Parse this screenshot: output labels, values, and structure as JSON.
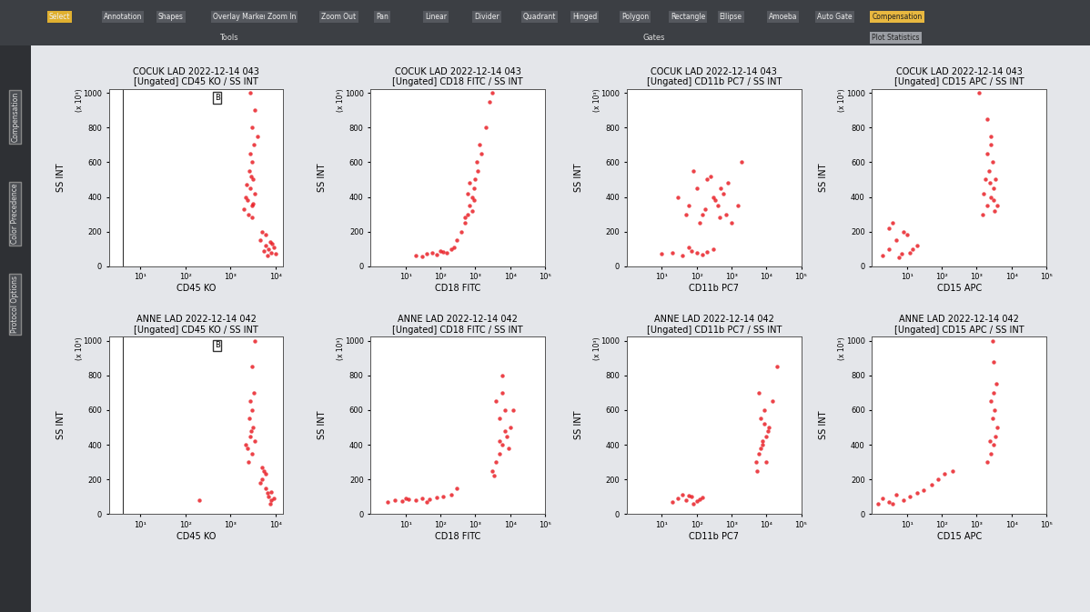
{
  "toolbar": {
    "tools_title": "Tools",
    "tools": [
      "Select",
      "Annotation",
      "Shapes",
      "Overlay Marker",
      "Zoom In",
      "Zoom Out",
      "Pan"
    ],
    "gates_title": "Gates",
    "gates": [
      "Linear",
      "Divider",
      "Quadrant",
      "Hinged",
      "Polygon",
      "Rectangle",
      "Ellipse",
      "Amoeba",
      "Auto Gate"
    ],
    "buttons": [
      "Compensation",
      "Plot Statistics"
    ]
  },
  "side_tabs": [
    "Compensation",
    "Color Precedence",
    "Protocol Options"
  ],
  "chart_data": [
    {
      "type": "scatter",
      "title": "COCUK LAD 2022-12-14 043",
      "subtitle": "[Ungated] CD45 KO / SS INT",
      "x_label": "CD45 KO",
      "y_label": "SS INT",
      "annotations": [
        "(x 10³)"
      ],
      "log": "x",
      "color": "#e8141b",
      "marker": "o",
      "xlim": [
        2,
        15000
      ],
      "xticks": [
        {
          "value": 10,
          "label": "10¹"
        },
        {
          "value": 100,
          "label": "10²"
        },
        {
          "value": 1000,
          "label": "10³"
        },
        {
          "value": 10000,
          "label": "10⁴"
        }
      ],
      "ylim": [
        0,
        1024
      ],
      "yticks": [
        0,
        200,
        400,
        600,
        800,
        1000
      ],
      "gate": {
        "label": "B",
        "x": 4
      },
      "x": [
        2500,
        3000,
        2200,
        2800,
        3200,
        2600,
        3000,
        2400,
        3500,
        2000,
        3000,
        2700,
        3300,
        3000,
        3500,
        2800,
        4000,
        2300,
        2900,
        3100,
        5000,
        4500,
        6000,
        7000,
        8000,
        6500,
        9000,
        5500,
        7500,
        10000,
        8500,
        6000
      ],
      "y": [
        300,
        350,
        400,
        450,
        500,
        550,
        600,
        380,
        420,
        330,
        280,
        650,
        700,
        800,
        900,
        1000,
        750,
        470,
        520,
        360,
        200,
        150,
        120,
        100,
        80,
        60,
        110,
        90,
        140,
        70,
        130,
        180
      ]
    },
    {
      "type": "scatter",
      "title": "COCUK LAD 2022-12-14 043",
      "subtitle": "[Ungated] CD18 FITC / SS INT",
      "x_label": "CD18 FITC",
      "y_label": "SS INT",
      "annotations": [
        "(x 10³)"
      ],
      "log": "x",
      "color": "#e8141b",
      "marker": "o",
      "xlim": [
        1,
        100000
      ],
      "xticks": [
        {
          "value": 10,
          "label": "10¹"
        },
        {
          "value": 100,
          "label": "10²"
        },
        {
          "value": 1000,
          "label": "10³"
        },
        {
          "value": 10000,
          "label": "10⁴"
        },
        {
          "value": 100000,
          "label": "10⁵"
        }
      ],
      "ylim": [
        0,
        1024
      ],
      "yticks": [
        0,
        200,
        400,
        600,
        800,
        1000
      ],
      "x": [
        20,
        40,
        60,
        80,
        100,
        150,
        200,
        30,
        120,
        250,
        300,
        400,
        500,
        600,
        700,
        800,
        900,
        1000,
        1200,
        1500,
        2000,
        2500,
        600,
        700,
        900,
        1100,
        800,
        500,
        3000,
        1300
      ],
      "y": [
        60,
        70,
        80,
        65,
        90,
        75,
        100,
        55,
        85,
        110,
        150,
        200,
        250,
        300,
        350,
        400,
        450,
        500,
        550,
        650,
        800,
        950,
        420,
        480,
        380,
        600,
        320,
        280,
        1000,
        700
      ]
    },
    {
      "type": "scatter",
      "title": "COCUK LAD 2022-12-14 043",
      "subtitle": "[Ungated] CD11b PC7 / SS INT",
      "x_label": "CD11b PC7",
      "y_label": "SS INT",
      "annotations": [
        "(x 10³)"
      ],
      "log": "x",
      "color": "#e8141b",
      "marker": "o",
      "xlim": [
        1,
        100000
      ],
      "xticks": [
        {
          "value": 10,
          "label": "10¹"
        },
        {
          "value": 100,
          "label": "10²"
        },
        {
          "value": 1000,
          "label": "10³"
        },
        {
          "value": 10000,
          "label": "10⁴"
        },
        {
          "value": 100000,
          "label": "10⁵"
        }
      ],
      "ylim": [
        0,
        1024
      ],
      "yticks": [
        0,
        200,
        400,
        600,
        800,
        1000
      ],
      "x": [
        30,
        60,
        100,
        150,
        200,
        300,
        400,
        500,
        700,
        1000,
        80,
        120,
        250,
        350,
        600,
        50,
        180,
        450,
        800,
        1500,
        10,
        20,
        40,
        70,
        100,
        200,
        300,
        150,
        60,
        2000
      ],
      "y": [
        400,
        350,
        450,
        300,
        500,
        400,
        350,
        450,
        300,
        250,
        550,
        250,
        520,
        380,
        420,
        300,
        330,
        280,
        480,
        350,
        70,
        80,
        60,
        90,
        75,
        85,
        100,
        65,
        110,
        600
      ]
    },
    {
      "type": "scatter",
      "title": "COCUK LAD 2022-12-14 043",
      "subtitle": "[Ungated] CD15 APC / SS INT",
      "x_label": "CD15 APC",
      "y_label": "SS INT",
      "annotations": [
        "(x 10³)"
      ],
      "log": "x",
      "color": "#e8141b",
      "marker": "o",
      "xlim": [
        1,
        100000
      ],
      "xticks": [
        {
          "value": 10,
          "label": "10¹"
        },
        {
          "value": 100,
          "label": "10²"
        },
        {
          "value": 1000,
          "label": "10³"
        },
        {
          "value": 10000,
          "label": "10⁴"
        },
        {
          "value": 100000,
          "label": "10⁵"
        }
      ],
      "ylim": [
        0,
        1024
      ],
      "yticks": [
        0,
        200,
        400,
        600,
        800,
        1000
      ],
      "x": [
        2,
        3,
        5,
        8,
        12,
        20,
        4,
        6,
        10,
        15,
        3,
        7,
        1500,
        2000,
        2500,
        3000,
        1800,
        2200,
        2800,
        3500,
        2000,
        2500,
        1600,
        3000,
        4000,
        2400,
        2000,
        1200,
        2600,
        3200
      ],
      "y": [
        60,
        100,
        150,
        200,
        80,
        120,
        250,
        50,
        180,
        100,
        220,
        70,
        300,
        350,
        400,
        450,
        500,
        550,
        600,
        500,
        650,
        700,
        420,
        380,
        350,
        480,
        850,
        1000,
        750,
        320
      ]
    },
    {
      "type": "scatter",
      "title": "ANNE LAD 2022-12-14 042",
      "subtitle": "[Ungated] CD45 KO / SS INT",
      "x_label": "CD45 KO",
      "y_label": "SS INT",
      "annotations": [
        "(x 10³)"
      ],
      "log": "x",
      "color": "#e8141b",
      "marker": "o",
      "xlim": [
        2,
        15000
      ],
      "xticks": [
        {
          "value": 10,
          "label": "10¹"
        },
        {
          "value": 100,
          "label": "10²"
        },
        {
          "value": 1000,
          "label": "10³"
        },
        {
          "value": 10000,
          "label": "10⁴"
        }
      ],
      "ylim": [
        0,
        1024
      ],
      "yticks": [
        0,
        200,
        400,
        600,
        800,
        1000
      ],
      "gate": {
        "label": "B",
        "x": 4
      },
      "x": [
        2500,
        3000,
        2200,
        2800,
        3200,
        2600,
        3000,
        2400,
        3500,
        2700,
        3300,
        2900,
        3000,
        3500,
        5000,
        6000,
        7000,
        8000,
        6500,
        9000,
        5500,
        7500,
        4500,
        5000,
        6000,
        200,
        8000
      ],
      "y": [
        300,
        350,
        400,
        450,
        500,
        550,
        600,
        380,
        420,
        650,
        700,
        480,
        850,
        1000,
        200,
        150,
        100,
        80,
        120,
        90,
        250,
        60,
        180,
        270,
        230,
        80,
        130
      ]
    },
    {
      "type": "scatter",
      "title": "ANNE LAD 2022-12-14 042",
      "subtitle": "[Ungated] CD18 FITC / SS INT",
      "x_label": "CD18 FITC",
      "y_label": "SS INT",
      "annotations": [
        "(x 10³)"
      ],
      "log": "x",
      "color": "#e8141b",
      "marker": "o",
      "xlim": [
        1,
        100000
      ],
      "xticks": [
        {
          "value": 10,
          "label": "10¹"
        },
        {
          "value": 100,
          "label": "10²"
        },
        {
          "value": 1000,
          "label": "10³"
        },
        {
          "value": 10000,
          "label": "10⁴"
        },
        {
          "value": 100000,
          "label": "10⁵"
        }
      ],
      "ylim": [
        0,
        1024
      ],
      "yticks": [
        0,
        200,
        400,
        600,
        800,
        1000
      ],
      "x": [
        3,
        5,
        8,
        12,
        20,
        30,
        50,
        80,
        120,
        200,
        300,
        10,
        40,
        3000,
        4000,
        5000,
        6000,
        8000,
        10000,
        5000,
        7000,
        4000,
        6000,
        9000,
        5000,
        3500,
        7000,
        12000,
        6000
      ],
      "y": [
        70,
        80,
        75,
        85,
        80,
        90,
        85,
        95,
        100,
        110,
        150,
        90,
        70,
        250,
        300,
        350,
        400,
        450,
        500,
        550,
        600,
        650,
        700,
        380,
        420,
        220,
        480,
        600,
        800
      ]
    },
    {
      "type": "scatter",
      "title": "ANNE LAD 2022-12-14 042",
      "subtitle": "[Ungated] CD11b PC7 / SS INT",
      "x_label": "CD11b PC7",
      "y_label": "SS INT",
      "annotations": [
        "(x 10³)"
      ],
      "log": "x",
      "color": "#e8141b",
      "marker": "o",
      "xlim": [
        1,
        100000
      ],
      "xticks": [
        {
          "value": 10,
          "label": "10¹"
        },
        {
          "value": 100,
          "label": "10²"
        },
        {
          "value": 1000,
          "label": "10³"
        },
        {
          "value": 10000,
          "label": "10⁴"
        },
        {
          "value": 100000,
          "label": "10⁵"
        }
      ],
      "ylim": [
        0,
        1024
      ],
      "yticks": [
        0,
        200,
        400,
        600,
        800,
        1000
      ],
      "x": [
        20,
        30,
        50,
        70,
        100,
        150,
        40,
        80,
        120,
        60,
        5000,
        6000,
        8000,
        10000,
        12000,
        7000,
        9000,
        15000,
        6000,
        8000,
        11000,
        7000,
        9000,
        10000,
        5500,
        20000
      ],
      "y": [
        70,
        90,
        80,
        100,
        75,
        95,
        110,
        60,
        85,
        105,
        300,
        350,
        400,
        450,
        500,
        550,
        600,
        650,
        700,
        420,
        480,
        380,
        520,
        300,
        250,
        850
      ]
    },
    {
      "type": "scatter",
      "title": "ANNE LAD 2022-12-14 042",
      "subtitle": "[Ungated] CD15 APC / SS INT",
      "x_label": "CD15 APC",
      "y_label": "SS INT",
      "annotations": [
        "(x 10³)"
      ],
      "log": "x",
      "color": "#e8141b",
      "marker": "o",
      "xlim": [
        1,
        100000
      ],
      "xticks": [
        {
          "value": 10,
          "label": "10¹"
        },
        {
          "value": 100,
          "label": "10²"
        },
        {
          "value": 1000,
          "label": "10³"
        },
        {
          "value": 10000,
          "label": "10⁴"
        },
        {
          "value": 100000,
          "label": "10⁵"
        }
      ],
      "ylim": [
        0,
        1024
      ],
      "yticks": [
        0,
        200,
        400,
        600,
        800,
        1000
      ],
      "x": [
        1.5,
        2,
        3,
        5,
        8,
        12,
        20,
        4,
        30,
        50,
        80,
        120,
        200,
        2000,
        2500,
        3000,
        3500,
        4000,
        2800,
        3200,
        2600,
        3000,
        3600,
        2400,
        3000,
        2800
      ],
      "y": [
        60,
        90,
        70,
        110,
        80,
        100,
        120,
        60,
        140,
        170,
        200,
        230,
        250,
        300,
        350,
        400,
        450,
        500,
        550,
        600,
        650,
        700,
        750,
        420,
        880,
        1000
      ]
    }
  ]
}
